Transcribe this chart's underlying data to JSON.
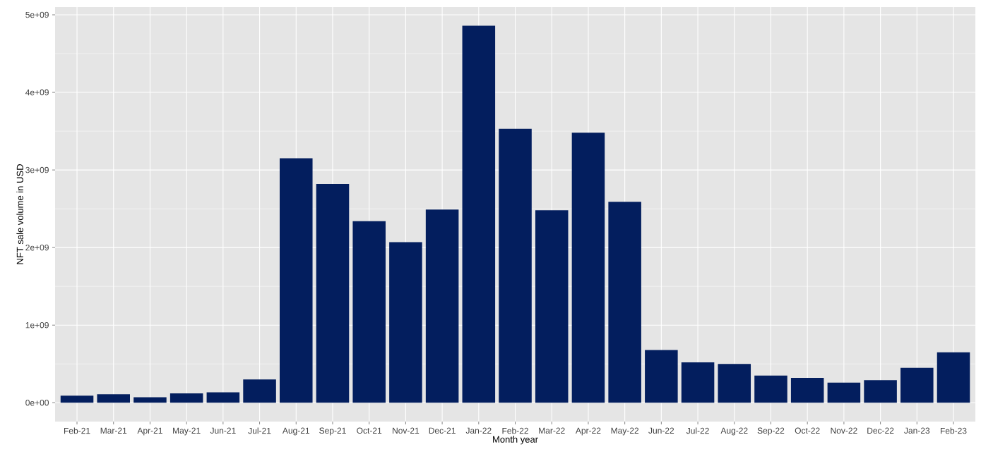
{
  "chart_data": {
    "type": "bar",
    "xlabel": "Month year",
    "ylabel": "NFT sale volume in USD",
    "categories": [
      "Feb-21",
      "Mar-21",
      "Apr-21",
      "May-21",
      "Jun-21",
      "Jul-21",
      "Aug-21",
      "Sep-21",
      "Oct-21",
      "Nov-21",
      "Dec-21",
      "Jan-22",
      "Feb-22",
      "Mar-22",
      "Apr-22",
      "May-22",
      "Jun-22",
      "Jul-22",
      "Aug-22",
      "Sep-22",
      "Oct-22",
      "Nov-22",
      "Dec-22",
      "Jan-23",
      "Feb-23"
    ],
    "values": [
      90000000,
      110000000,
      70000000,
      120000000,
      135000000,
      300000000,
      3150000000,
      2820000000,
      2340000000,
      2070000000,
      2490000000,
      4860000000,
      3530000000,
      2480000000,
      3480000000,
      2590000000,
      680000000,
      520000000,
      500000000,
      350000000,
      320000000,
      260000000,
      290000000,
      450000000,
      650000000
    ],
    "color": "#031e5e",
    "ylim": [
      -243000000,
      5100000000
    ],
    "yticks": [
      {
        "value": 0,
        "label": "0e+00"
      },
      {
        "value": 1000000000,
        "label": "1e+09"
      },
      {
        "value": 2000000000,
        "label": "2e+09"
      },
      {
        "value": 3000000000,
        "label": "3e+09"
      },
      {
        "value": 4000000000,
        "label": "4e+09"
      },
      {
        "value": 5000000000,
        "label": "5e+09"
      }
    ],
    "grid": true
  }
}
